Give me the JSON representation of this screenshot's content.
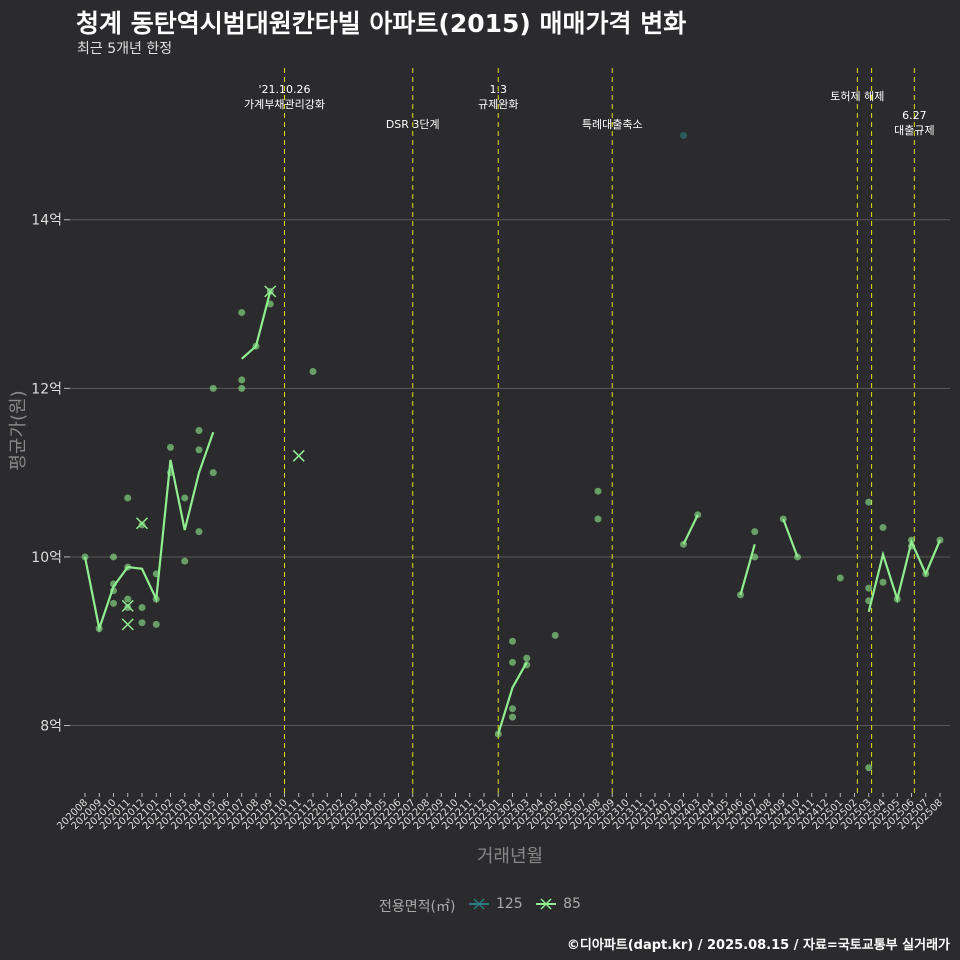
{
  "title": "청계 동탄역시범대원칸타빌 아파트(2015) 매매가격 변화",
  "subtitle": "최근 5개년 한정",
  "caption": "©디아파트(dapt.kr) / 2025.08.15 / 자료=국토교통부 실거래가",
  "colors": {
    "background": "#2b2a2c",
    "grid": "#5a5a5a",
    "series_85": "#90ee90",
    "series_125": "#2a7d7d",
    "event_line": "#e0e000"
  },
  "chart_data": {
    "type": "line",
    "xlabel": "거래년월",
    "ylabel": "평균가(원)",
    "ylim": [
      7.2,
      15.8
    ],
    "y_ticks": [
      {
        "value": 8,
        "label": "8억"
      },
      {
        "value": 10,
        "label": "10억"
      },
      {
        "value": 12,
        "label": "12억"
      },
      {
        "value": 14,
        "label": "14억"
      }
    ],
    "x_categories": [
      "202008",
      "202009",
      "202010",
      "202011",
      "202012",
      "202101",
      "202102",
      "202103",
      "202104",
      "202105",
      "202106",
      "202107",
      "202108",
      "202109",
      "202110",
      "202111",
      "202112",
      "202201",
      "202202",
      "202203",
      "202204",
      "202205",
      "202206",
      "202207",
      "202208",
      "202209",
      "202210",
      "202211",
      "202212",
      "202301",
      "202302",
      "202303",
      "202304",
      "202305",
      "202306",
      "202307",
      "202308",
      "202309",
      "202310",
      "202311",
      "202312",
      "202401",
      "202402",
      "202403",
      "202404",
      "202405",
      "202406",
      "202407",
      "202408",
      "202409",
      "202410",
      "202411",
      "202412",
      "202501",
      "202502",
      "202503",
      "202504",
      "202505",
      "202506",
      "202507",
      "202508"
    ],
    "legend": {
      "title": "전용면적(㎡)",
      "items": [
        {
          "name": "125",
          "color": "#2a7d7d"
        },
        {
          "name": "85",
          "color": "#90ee90"
        }
      ]
    },
    "events": [
      {
        "x": 14.0,
        "lines": [
          "'21.10.26",
          "가계부채관리강화"
        ],
        "label_row": 0
      },
      {
        "x": 23.0,
        "lines": [
          "DSR 3단계"
        ],
        "label_row": 2
      },
      {
        "x": 29.0,
        "lines": [
          "1.3",
          "규제완화"
        ],
        "label_row": 0
      },
      {
        "x": 37.0,
        "lines": [
          "특례대출축소"
        ],
        "label_row": 2
      },
      {
        "x": 54.2,
        "lines": [
          "토허제 해제"
        ],
        "label_row": 1
      },
      {
        "x": 55.2,
        "lines": [],
        "label_row": 1
      },
      {
        "x": 58.2,
        "lines": [
          "6.27",
          "대출규제"
        ],
        "label_row": 3
      }
    ],
    "series": [
      {
        "name": "85",
        "line_segments": [
          [
            [
              0,
              10.0
            ],
            [
              1,
              9.15
            ],
            [
              2,
              9.65
            ],
            [
              3,
              9.88
            ],
            [
              4,
              9.86
            ],
            [
              5,
              9.5
            ],
            [
              6,
              11.15
            ],
            [
              7,
              10.32
            ],
            [
              8,
              11.0
            ],
            [
              9,
              11.48
            ]
          ],
          [
            [
              11,
              12.35
            ],
            [
              12,
              12.5
            ],
            [
              13,
              13.15
            ]
          ],
          [
            [
              29,
              7.9
            ],
            [
              30,
              8.45
            ],
            [
              31,
              8.75
            ]
          ],
          [
            [
              42,
              10.15
            ],
            [
              43,
              10.5
            ]
          ],
          [
            [
              46,
              9.55
            ],
            [
              47,
              10.15
            ]
          ],
          [
            [
              49,
              10.45
            ],
            [
              50,
              10.0
            ]
          ],
          [
            [
              55,
              9.35
            ],
            [
              56,
              10.03
            ],
            [
              57,
              9.5
            ],
            [
              58,
              10.18
            ],
            [
              59,
              9.8
            ],
            [
              60,
              10.2
            ]
          ]
        ],
        "points": [
          [
            0,
            10.0
          ],
          [
            1,
            9.15
          ],
          [
            2,
            9.6
          ],
          [
            2,
            9.68
          ],
          [
            2,
            9.45
          ],
          [
            2,
            10.0
          ],
          [
            3,
            9.88
          ],
          [
            3,
            10.7
          ],
          [
            3,
            9.5
          ],
          [
            3,
            9.4
          ],
          [
            4,
            9.22
          ],
          [
            4,
            9.4
          ],
          [
            4,
            10.38
          ],
          [
            5,
            9.8
          ],
          [
            5,
            9.2
          ],
          [
            5,
            9.5
          ],
          [
            6,
            11.3
          ],
          [
            6,
            11.0
          ],
          [
            7,
            10.7
          ],
          [
            7,
            9.95
          ],
          [
            8,
            11.5
          ],
          [
            8,
            11.27
          ],
          [
            8,
            10.3
          ],
          [
            9,
            12.0
          ],
          [
            9,
            11.0
          ],
          [
            11,
            12.9
          ],
          [
            11,
            12.1
          ],
          [
            11,
            12.0
          ],
          [
            12,
            12.5
          ],
          [
            13,
            13.0
          ],
          [
            13,
            13.15
          ],
          [
            16,
            12.2
          ],
          [
            29,
            7.9
          ],
          [
            30,
            9.0
          ],
          [
            30,
            8.75
          ],
          [
            30,
            8.2
          ],
          [
            30,
            8.1
          ],
          [
            31,
            8.8
          ],
          [
            31,
            8.72
          ],
          [
            33,
            9.07
          ],
          [
            36,
            10.78
          ],
          [
            36,
            10.45
          ],
          [
            42,
            10.15
          ],
          [
            43,
            10.5
          ],
          [
            46,
            9.55
          ],
          [
            47,
            10.3
          ],
          [
            47,
            10.0
          ],
          [
            49,
            10.45
          ],
          [
            50,
            10.0
          ],
          [
            53,
            9.75
          ],
          [
            55,
            10.65
          ],
          [
            55,
            9.63
          ],
          [
            55,
            9.48
          ],
          [
            55,
            7.5
          ],
          [
            56,
            10.35
          ],
          [
            56,
            9.7
          ],
          [
            57,
            9.5
          ],
          [
            58,
            10.2
          ],
          [
            58,
            10.13
          ],
          [
            59,
            9.8
          ],
          [
            60,
            10.2
          ]
        ],
        "cross_markers": [
          [
            3,
            9.42
          ],
          [
            3,
            9.2
          ],
          [
            4,
            10.4
          ],
          [
            13,
            13.15
          ],
          [
            15,
            11.2
          ]
        ]
      },
      {
        "name": "125",
        "points": [
          [
            42,
            15.0
          ]
        ]
      }
    ]
  }
}
